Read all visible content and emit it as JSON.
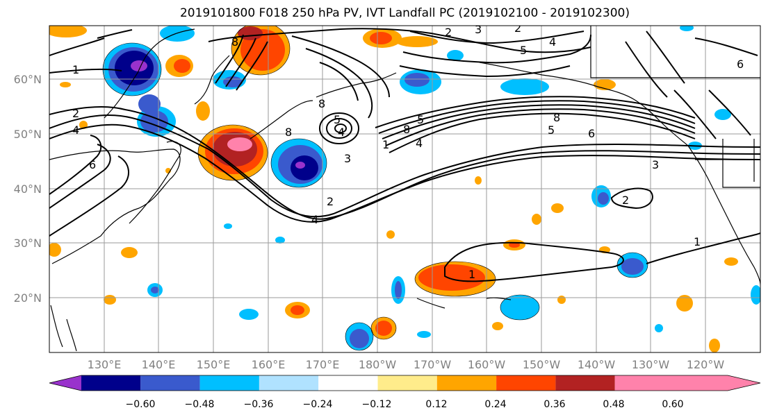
{
  "title": "2019101800 F018 250 hPa PV, IVT Landfall PC (2019102100 - 2019102300)",
  "lat_ticks": [
    "60°N",
    "50°N",
    "40°N",
    "30°N",
    "20°N"
  ],
  "lon_ticks": [
    "130°E",
    "140°E",
    "150°E",
    "160°E",
    "170°E",
    "180°W",
    "170°W",
    "160°W",
    "150°W",
    "140°W",
    "130°W",
    "120°W"
  ],
  "colorbar": {
    "colors": [
      "#9932cc",
      "#00008b",
      "#3a5acd",
      "#00bfff",
      "#b0e2ff",
      "#ffffff",
      "#ffec8b",
      "#ffa500",
      "#ff4500",
      "#b22222",
      "#ff82ab"
    ],
    "tick_labels": [
      "−0.60",
      "−0.48",
      "−0.36",
      "−0.24",
      "−0.12",
      "0.12",
      "0.24",
      "0.36",
      "0.48",
      "0.60"
    ]
  },
  "contour_labels": [
    "1",
    "2",
    "4",
    "6",
    "8",
    "8",
    "5",
    "4",
    "3",
    "2",
    "5",
    "4",
    "3",
    "8",
    "5",
    "6",
    "3",
    "8",
    "5",
    "4",
    "1",
    "2",
    "4",
    "8",
    "2",
    "1",
    "1",
    "2",
    "6"
  ]
}
